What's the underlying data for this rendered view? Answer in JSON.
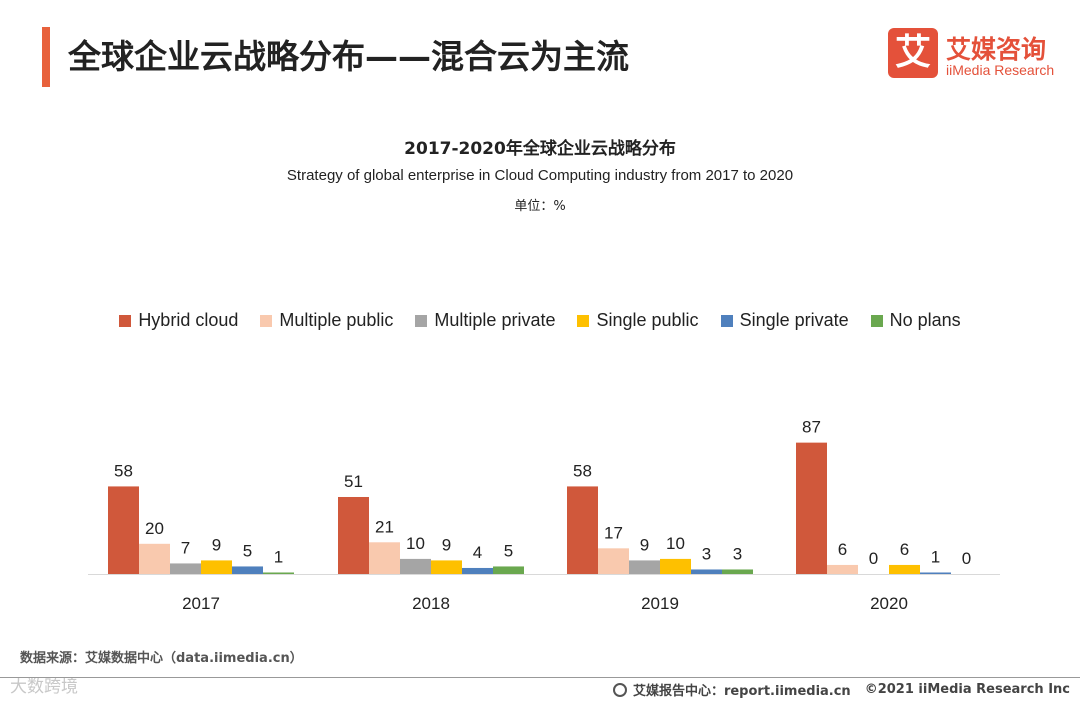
{
  "page": {
    "title": "全球企业云战略分布——混合云为主流",
    "accent_color": "#e8613c"
  },
  "logo": {
    "mark": "艾",
    "cn": "艾媒咨询",
    "en": "iiMedia Research"
  },
  "chart_data": {
    "type": "bar",
    "title": "2017-2020年全球企业云战略分布",
    "subtitle": "Strategy of global enterprise in Cloud Computing industry from 2017 to 2020",
    "unit": "单位：%",
    "categories": [
      "2017",
      "2018",
      "2019",
      "2020"
    ],
    "series": [
      {
        "name": "Hybrid cloud",
        "color": "#d0583b",
        "values": [
          58,
          51,
          58,
          87
        ]
      },
      {
        "name": "Multiple public",
        "color": "#f9c9ae",
        "values": [
          20,
          21,
          17,
          6
        ]
      },
      {
        "name": "Multiple private",
        "color": "#a5a5a5",
        "values": [
          7,
          10,
          9,
          0
        ]
      },
      {
        "name": "Single public",
        "color": "#fec000",
        "values": [
          9,
          9,
          10,
          6
        ]
      },
      {
        "name": "Single private",
        "color": "#4f80bd",
        "values": [
          5,
          4,
          3,
          1
        ]
      },
      {
        "name": "No plans",
        "color": "#6aa84f",
        "values": [
          1,
          5,
          3,
          0
        ]
      }
    ],
    "ylim": [
      0,
      100
    ],
    "grid": false,
    "legend_position": "top"
  },
  "source": "数据来源：艾媒数据中心（data.iimedia.cn）",
  "watermark": "大数跨境",
  "footer": {
    "report": "艾媒报告中心：report.iimedia.cn",
    "copyright": "©2021  iiMedia Research  Inc"
  }
}
